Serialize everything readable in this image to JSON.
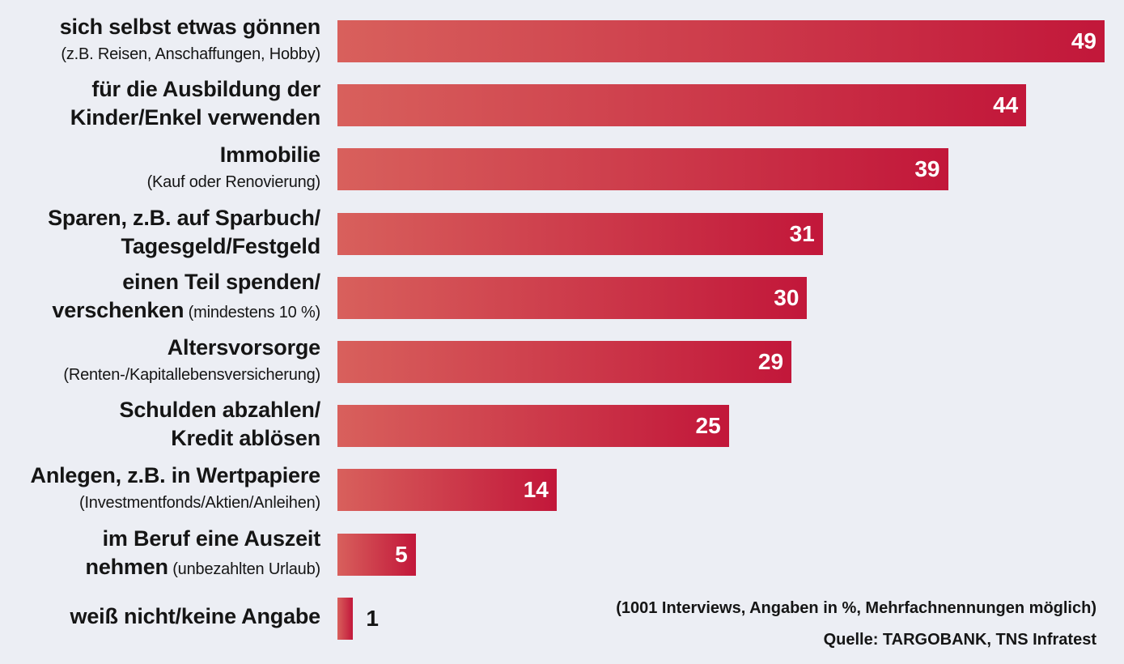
{
  "chart_data": {
    "type": "bar",
    "orientation": "horizontal",
    "categories": [
      {
        "lines": [
          [
            {
              "text": "sich selbst etwas gönnen",
              "bold": true
            }
          ],
          [
            {
              "text": "(z.B. Reisen, Anschaffungen, Hobby)",
              "bold": false
            }
          ]
        ]
      },
      {
        "lines": [
          [
            {
              "text": "für die Ausbildung der",
              "bold": true
            }
          ],
          [
            {
              "text": "Kinder/Enkel verwenden",
              "bold": true
            }
          ]
        ]
      },
      {
        "lines": [
          [
            {
              "text": "Immobilie",
              "bold": true
            }
          ],
          [
            {
              "text": "(Kauf oder Renovierung)",
              "bold": false
            }
          ]
        ]
      },
      {
        "lines": [
          [
            {
              "text": "Sparen, z.B. auf Sparbuch/",
              "bold": true
            }
          ],
          [
            {
              "text": "Tagesgeld/Festgeld",
              "bold": true
            }
          ]
        ]
      },
      {
        "lines": [
          [
            {
              "text": "einen Teil spenden/",
              "bold": true
            }
          ],
          [
            {
              "text": "verschenken",
              "bold": true
            },
            {
              "text": " (mindestens 10 %)",
              "bold": false
            }
          ]
        ]
      },
      {
        "lines": [
          [
            {
              "text": "Altersvorsorge",
              "bold": true
            }
          ],
          [
            {
              "text": "(Renten-/Kapitallebensversicherung)",
              "bold": false
            }
          ]
        ]
      },
      {
        "lines": [
          [
            {
              "text": "Schulden abzahlen/",
              "bold": true
            }
          ],
          [
            {
              "text": "Kredit ablösen",
              "bold": true
            }
          ]
        ]
      },
      {
        "lines": [
          [
            {
              "text": "Anlegen, z.B. in Wertpapiere",
              "bold": true
            }
          ],
          [
            {
              "text": "(Investmentfonds/Aktien/Anleihen)",
              "bold": false
            }
          ]
        ]
      },
      {
        "lines": [
          [
            {
              "text": "im Beruf eine Auszeit",
              "bold": true
            }
          ],
          [
            {
              "text": "nehmen",
              "bold": true
            },
            {
              "text": " (unbezahlten Urlaub)",
              "bold": false
            }
          ]
        ]
      },
      {
        "lines": [
          [
            {
              "text": "weiß nicht/keine Angabe",
              "bold": true
            }
          ]
        ]
      }
    ],
    "values": [
      49,
      44,
      39,
      31,
      30,
      29,
      25,
      14,
      5,
      1
    ],
    "value_labels": [
      "49",
      "44",
      "39",
      "31",
      "30",
      "29",
      "25",
      "14",
      "5",
      "1"
    ],
    "xlim": [
      0,
      49
    ],
    "grid": false,
    "legend": "none",
    "colors": {
      "bar_start": "#d8605c",
      "bar_end": "#c2173a",
      "background": "#eceef4"
    }
  },
  "notes": {
    "method": "(1001 Interviews, Angaben in %, Mehrfachnennungen möglich)",
    "source": "Quelle: TARGOBANK, TNS Infratest"
  }
}
